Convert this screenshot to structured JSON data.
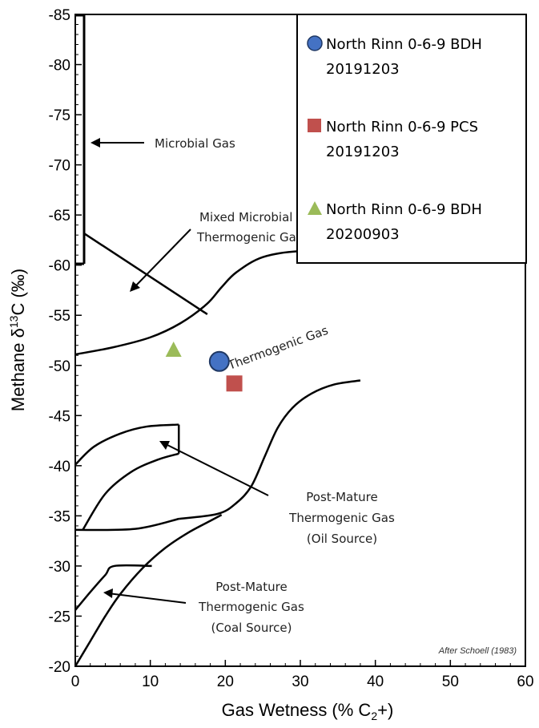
{
  "chart_data": {
    "type": "scatter",
    "xlabel": "Gas Wetness (% C",
    "xlabel_sub": "2",
    "xlabel_end": "+)",
    "ylabel_pre": "Methane  δ",
    "ylabel_sup": "13",
    "ylabel_post": "C (‰)",
    "xlim": [
      0,
      60
    ],
    "ylim": [
      -20,
      -85
    ],
    "x_ticks": [
      "0",
      "10",
      "20",
      "30",
      "40",
      "50",
      "60"
    ],
    "y_ticks": [
      "-20",
      "-25",
      "-30",
      "-35",
      "-40",
      "-45",
      "-50",
      "-55",
      "-60",
      "-65",
      "-70",
      "-75",
      "-80",
      "-85"
    ],
    "grid": false,
    "legend_position": "top-right",
    "series": [
      {
        "name": "North Rinn 0-6-9 BDH 20191203",
        "name_line1": "North Rinn 0-6-9 BDH",
        "name_line2": "20191203",
        "marker": "circle",
        "color": "#4472C4",
        "x": [
          19.2
        ],
        "y": [
          -50.4
        ]
      },
      {
        "name": "North Rinn 0-6-9 PCS 20191203",
        "name_line1": "North Rinn 0-6-9 PCS",
        "name_line2": "20191203",
        "marker": "square",
        "color": "#C0504D",
        "x": [
          21.2
        ],
        "y": [
          -48.2
        ]
      },
      {
        "name": "North Rinn 0-6-9 BDH 20200903",
        "name_line1": "North Rinn 0-6-9 BDH",
        "name_line2": "20200903",
        "marker": "triangle",
        "color": "#9BBB59",
        "x": [
          13.1
        ],
        "y": [
          -51.5
        ]
      }
    ],
    "annotations": {
      "microbial": "Microbial Gas",
      "mixed_line1": "Mixed Microbial",
      "mixed_line2": "Thermogenic Gas",
      "thermogenic": "Thermogenic Gas",
      "oil_line1": "Post-Mature",
      "oil_line2": "Thermogenic Gas",
      "oil_line3": "(Oil Source)",
      "coal_line1": "Post-Mature",
      "coal_line2": "Thermogenic Gas",
      "coal_line3": "(Coal Source)",
      "credit": "After Schoell (1983)"
    },
    "field_boundaries": {
      "mixed_lower": [
        [
          0,
          -51.1
        ],
        [
          5,
          -51.8
        ],
        [
          10,
          -52.8
        ],
        [
          14,
          -54.2
        ],
        [
          17.5,
          -56.1
        ],
        [
          19.5,
          -57.8
        ],
        [
          21.5,
          -59.3
        ],
        [
          25,
          -60.8
        ],
        [
          30,
          -61.4
        ],
        [
          38,
          -61.5
        ]
      ],
      "mixed_diagonal": [
        [
          1.1,
          -63.2
        ],
        [
          17.6,
          -55.1
        ]
      ],
      "oil_right": [
        [
          13.8,
          -34.7
        ],
        [
          19,
          -35.2
        ],
        [
          21.5,
          -36.3
        ],
        [
          23.5,
          -38
        ],
        [
          25.3,
          -41
        ],
        [
          27,
          -43.8
        ],
        [
          29,
          -45.8
        ],
        [
          31.5,
          -47.2
        ],
        [
          34.5,
          -48.1
        ],
        [
          38,
          -48.5
        ]
      ],
      "oil_bottom": [
        [
          0,
          -33.6
        ],
        [
          8,
          -33.7
        ],
        [
          13.8,
          -34.7
        ]
      ],
      "oil_left": [
        [
          1,
          -33.6
        ],
        [
          4,
          -37.2
        ],
        [
          7.5,
          -39.4
        ],
        [
          11,
          -40.6
        ],
        [
          13.8,
          -41.2
        ]
      ],
      "oil_top_inner": [
        [
          0,
          -40.1
        ],
        [
          2.5,
          -41.9
        ],
        [
          6,
          -43.2
        ],
        [
          9.5,
          -43.9
        ],
        [
          13.8,
          -44.1
        ]
      ],
      "oil_vertical": [
        [
          13.8,
          -41.2
        ],
        [
          13.8,
          -44.1
        ]
      ],
      "coal_upper": [
        [
          0,
          -25.6
        ],
        [
          2,
          -27.4
        ],
        [
          4,
          -29.1
        ],
        [
          5.2,
          -30.0
        ],
        [
          10.2,
          -30.0
        ]
      ],
      "coal_lower": [
        [
          0,
          -20
        ],
        [
          2,
          -22.5
        ],
        [
          4,
          -25
        ],
        [
          6,
          -27.2
        ],
        [
          9,
          -29.8
        ],
        [
          12,
          -31.8
        ],
        [
          15,
          -33.3
        ],
        [
          18,
          -34.5
        ],
        [
          19.5,
          -35.1
        ]
      ]
    }
  }
}
